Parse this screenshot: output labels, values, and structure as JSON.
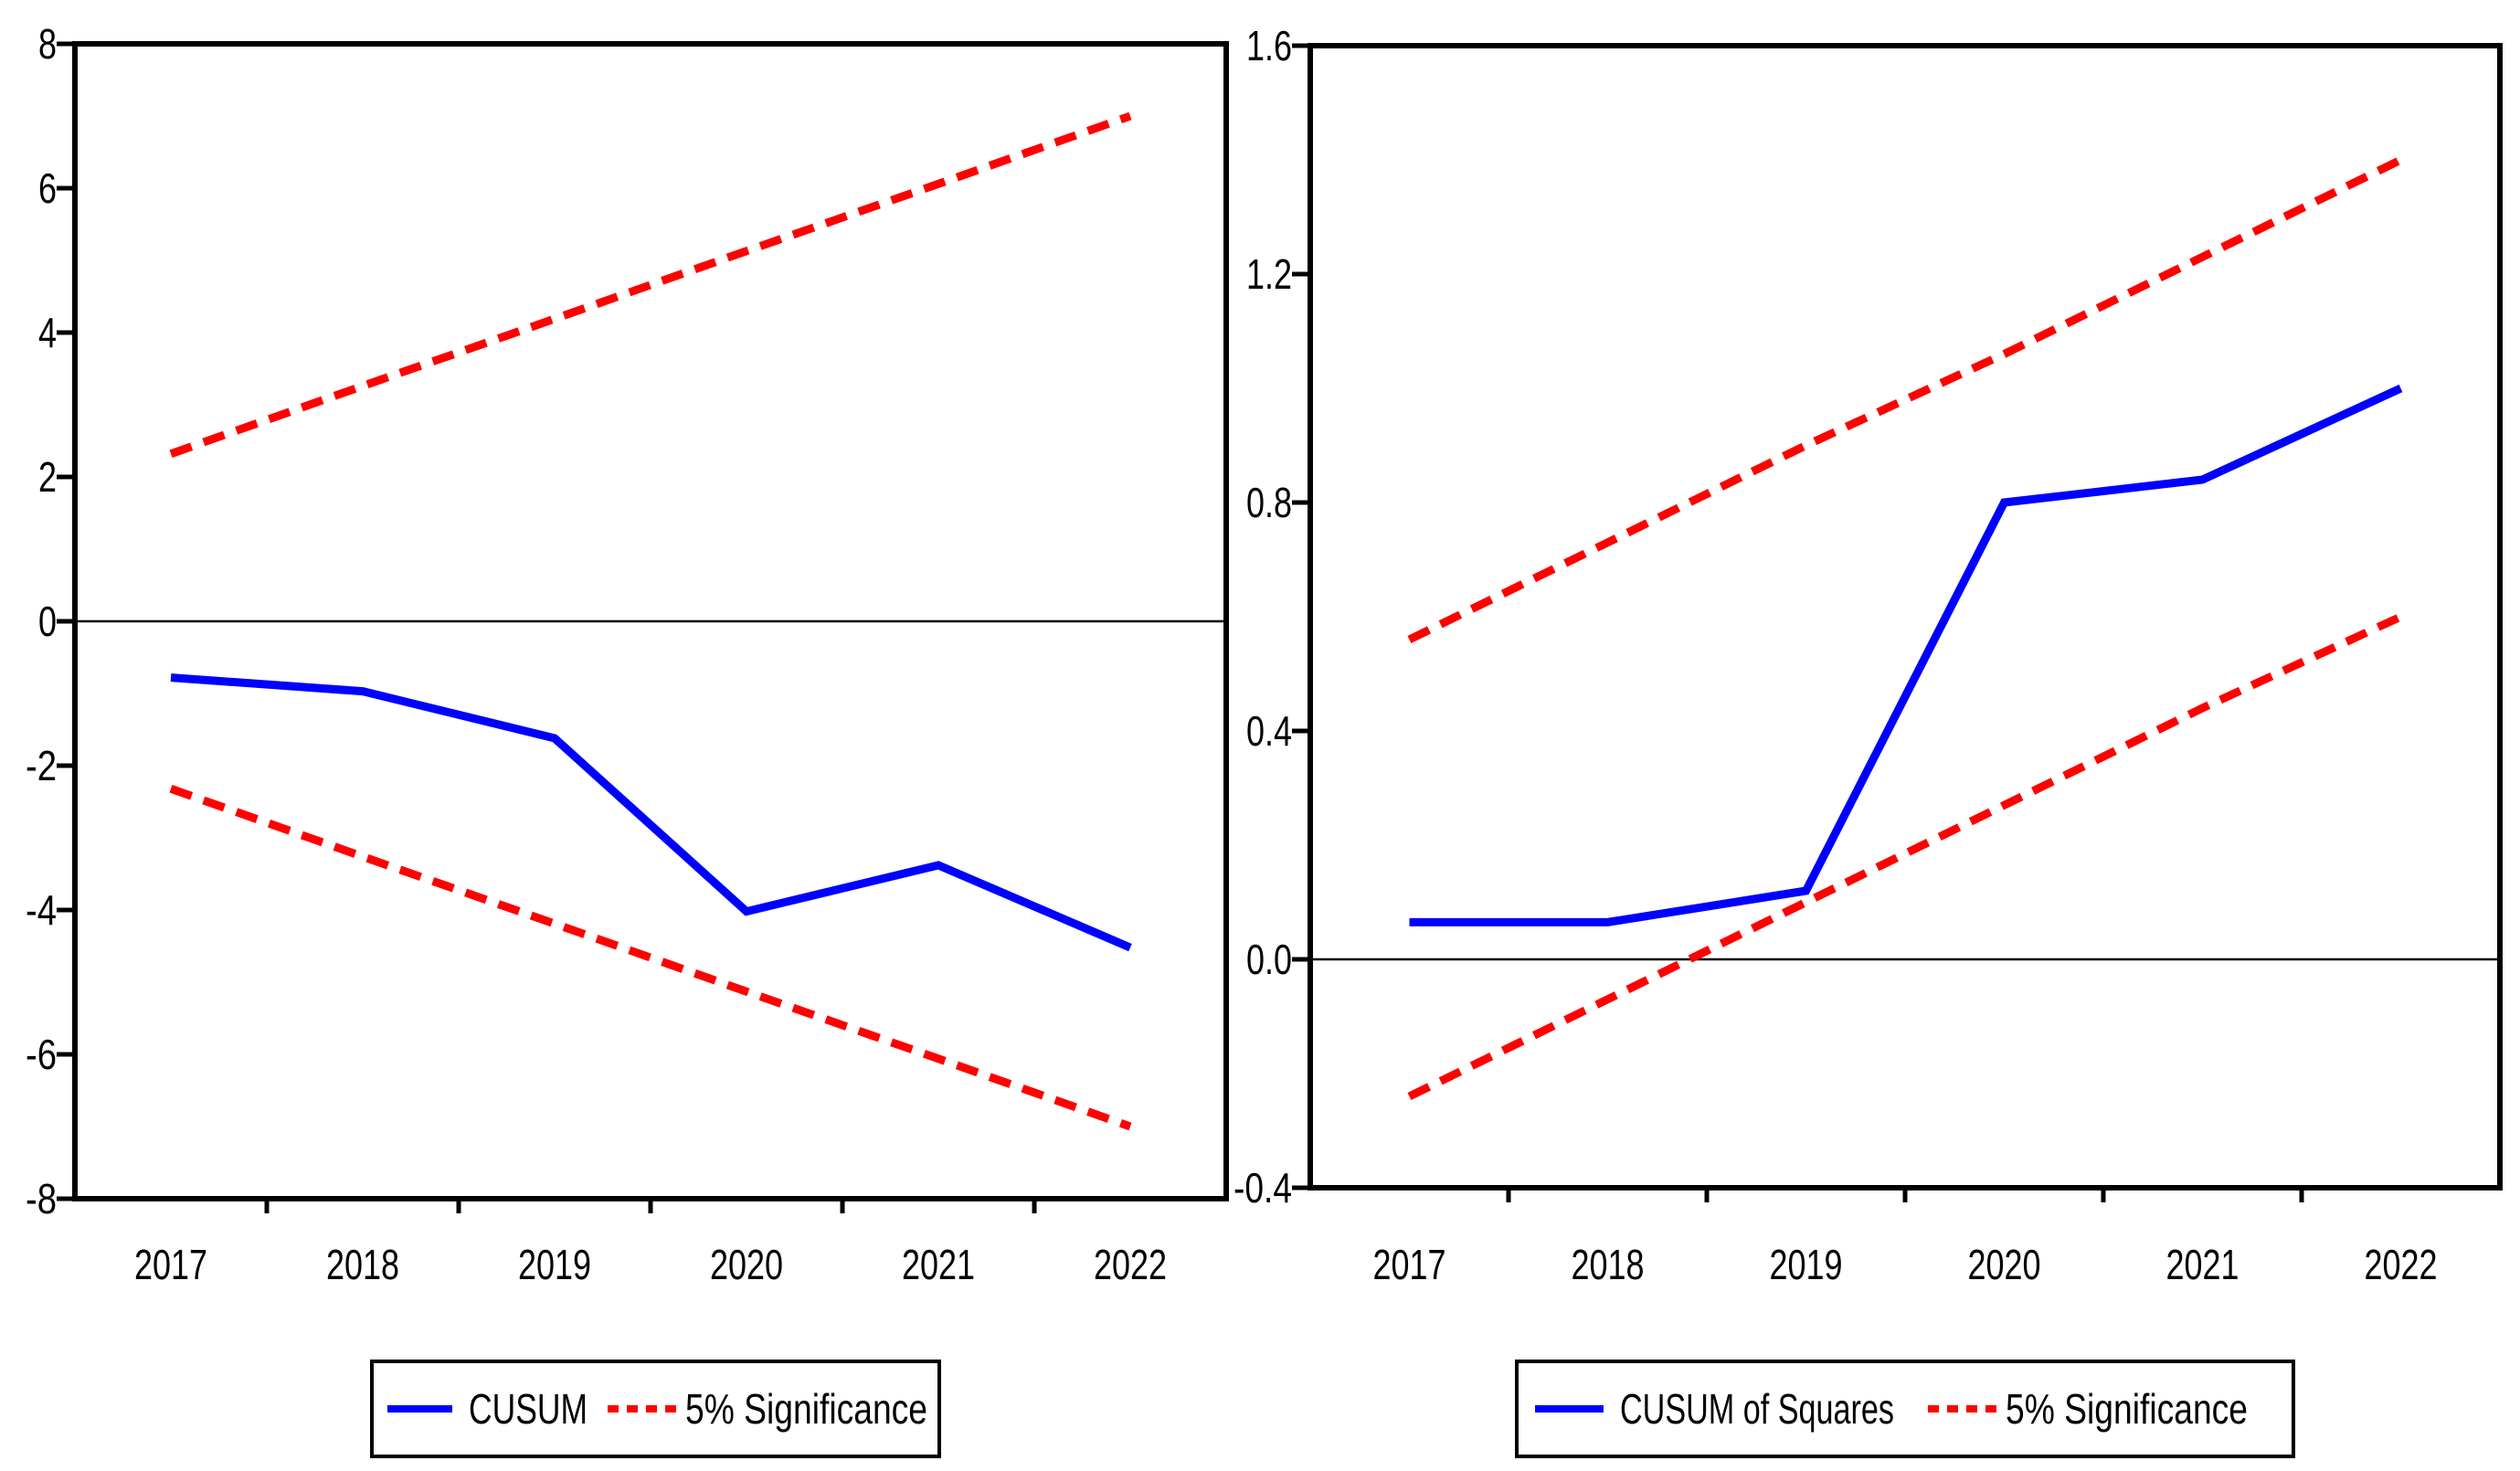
{
  "figure": {
    "background": "#ffffff",
    "description": "CUSUM and CUSUM of Squares parameter stability test plots with 5% significance bounds"
  },
  "colors": {
    "statistic_line": "#0000ff",
    "significance_line": "#ff0000",
    "axis": "#000000",
    "zero_line": "#000000"
  },
  "chart_data": [
    {
      "type": "line",
      "title": "",
      "xlabel": "",
      "ylabel": "",
      "categories": [
        "2017",
        "2018",
        "2019",
        "2020",
        "2021",
        "2022"
      ],
      "ylim": [
        -8,
        8
      ],
      "yticklabels": [
        "8",
        "6",
        "4",
        "2",
        "0",
        "-2",
        "-4",
        "-6",
        "-8"
      ],
      "grid": false,
      "zero_line": true,
      "legend_position": "bottom",
      "series": [
        {
          "name": "CUSUM",
          "color": "#0000ff",
          "style": "solid",
          "values": [
            -0.78,
            -0.97,
            -1.62,
            -4.02,
            -3.38,
            -4.52
          ]
        },
        {
          "name": "5% Significance (upper)",
          "color": "#ff0000",
          "style": "dashed",
          "values": [
            2.32,
            3.26,
            4.19,
            5.13,
            6.06,
            7.0
          ]
        },
        {
          "name": "5% Significance (lower)",
          "color": "#ff0000",
          "style": "dashed",
          "values": [
            -2.32,
            -3.26,
            -4.19,
            -5.13,
            -6.06,
            -7.0
          ]
        }
      ],
      "legend": [
        "CUSUM",
        "5% Significance"
      ]
    },
    {
      "type": "line",
      "title": "",
      "xlabel": "",
      "ylabel": "",
      "categories": [
        "2017",
        "2018",
        "2019",
        "2020",
        "2021",
        "2022"
      ],
      "ylim": [
        -0.4,
        1.6
      ],
      "yticklabels": [
        "1.6",
        "1.2",
        "0.8",
        "0.4",
        "0.0",
        "-0.4"
      ],
      "grid": false,
      "zero_line": true,
      "legend_position": "bottom",
      "series": [
        {
          "name": "CUSUM of Squares",
          "color": "#0000ff",
          "style": "solid",
          "values": [
            0.065,
            0.065,
            0.12,
            0.8,
            0.84,
            1.0
          ]
        },
        {
          "name": "5% Significance (upper)",
          "color": "#ff0000",
          "style": "dashed",
          "values": [
            0.56,
            0.73,
            0.9,
            1.06,
            1.23,
            1.4
          ]
        },
        {
          "name": "5% Significance (lower)",
          "color": "#ff0000",
          "style": "dashed",
          "values": [
            -0.24,
            -0.07,
            0.1,
            0.27,
            0.44,
            0.6
          ]
        }
      ],
      "legend": [
        "CUSUM of Squares",
        "5% Significance"
      ]
    }
  ]
}
